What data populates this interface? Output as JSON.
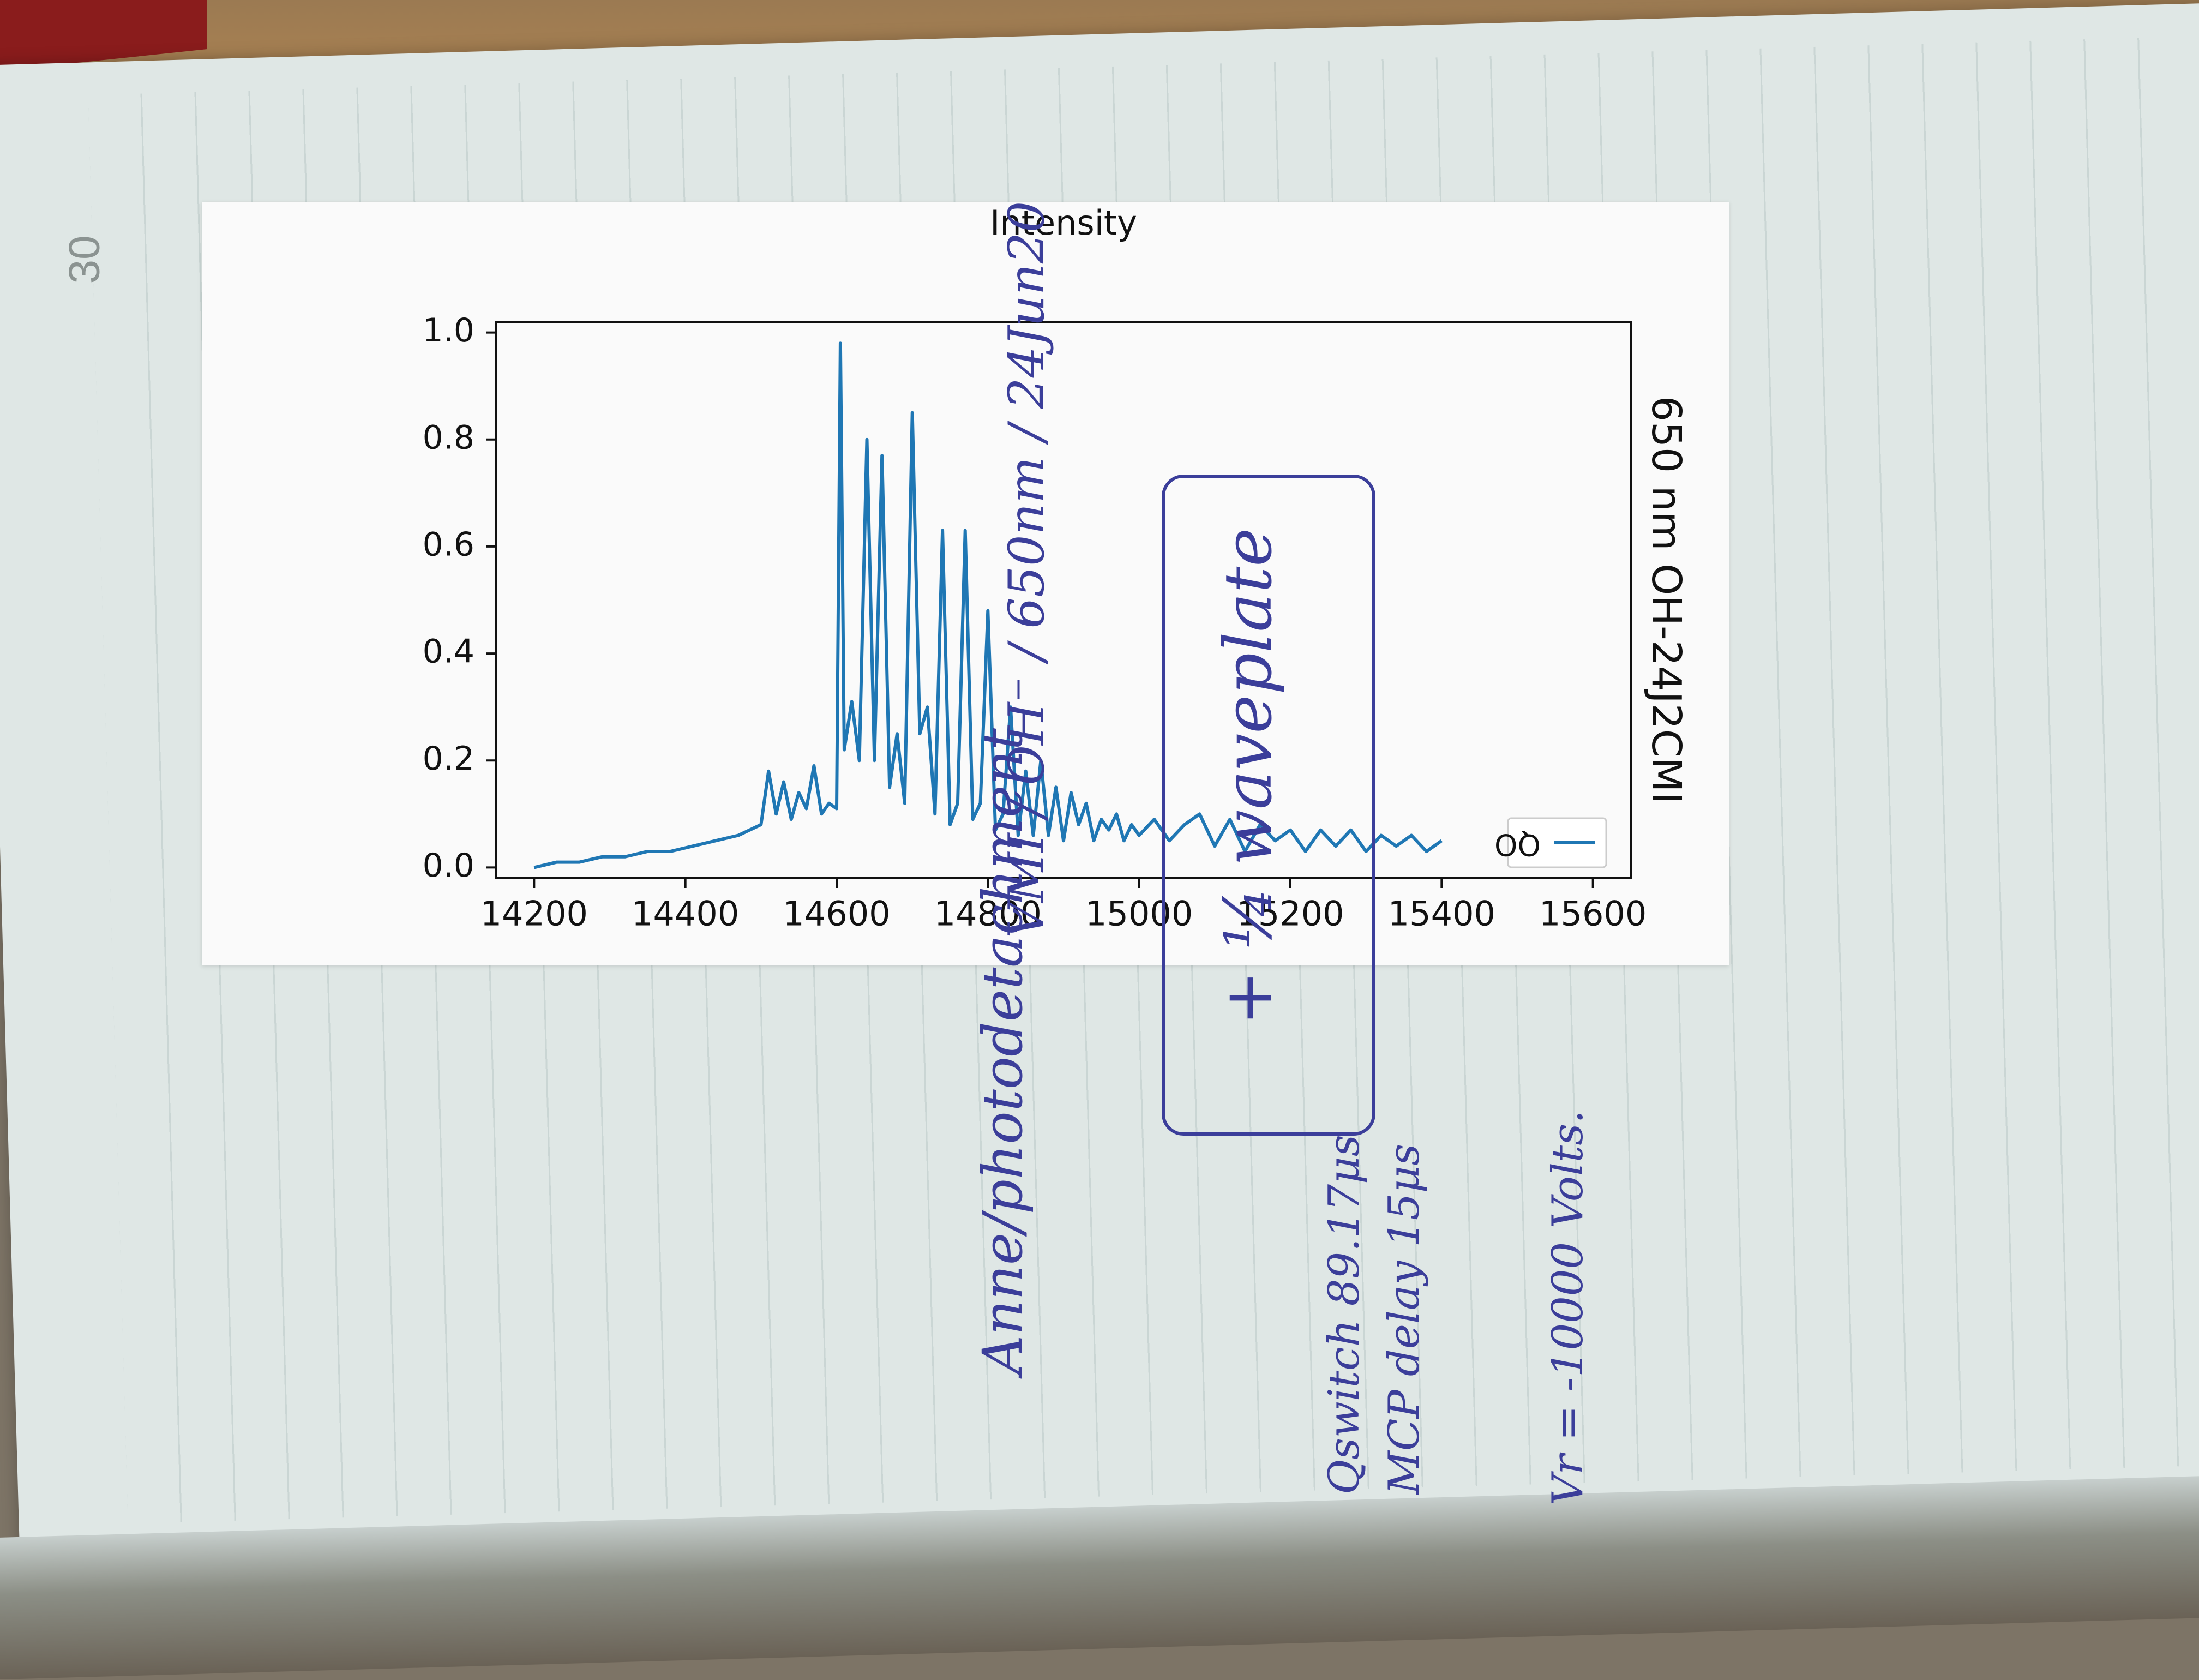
{
  "notebook": {
    "page_number": "30"
  },
  "chart_data": {
    "type": "line",
    "title": "650 nm    OH-24J2CMI",
    "xlabel": "",
    "ylabel": "Intensity",
    "xlim": [
      14150,
      15650
    ],
    "ylim": [
      -0.02,
      1.02
    ],
    "xticks": [
      14200,
      14400,
      14600,
      14800,
      15000,
      15200,
      15400,
      15600
    ],
    "yticks": [
      "0.0",
      "0.2",
      "0.4",
      "0.6",
      "0.8",
      "1.0"
    ],
    "legend": {
      "position": "top-right",
      "entries": [
        "QO"
      ]
    },
    "series": [
      {
        "name": "QO",
        "color": "#1f77b4",
        "x": [
          14200,
          14230,
          14260,
          14290,
          14320,
          14350,
          14380,
          14410,
          14440,
          14470,
          14500,
          14510,
          14520,
          14530,
          14540,
          14550,
          14560,
          14570,
          14580,
          14590,
          14600,
          14605,
          14610,
          14620,
          14630,
          14640,
          14650,
          14660,
          14670,
          14680,
          14690,
          14700,
          14710,
          14720,
          14730,
          14740,
          14750,
          14760,
          14770,
          14780,
          14790,
          14800,
          14810,
          14820,
          14830,
          14840,
          14850,
          14860,
          14870,
          14880,
          14890,
          14900,
          14910,
          14920,
          14930,
          14940,
          14950,
          14960,
          14970,
          14980,
          14990,
          15000,
          15020,
          15040,
          15060,
          15080,
          15100,
          15120,
          15140,
          15160,
          15180,
          15200,
          15220,
          15240,
          15260,
          15280,
          15300,
          15320,
          15340,
          15360,
          15380,
          15400
        ],
        "y": [
          0.0,
          0.01,
          0.01,
          0.02,
          0.02,
          0.03,
          0.03,
          0.04,
          0.05,
          0.06,
          0.08,
          0.18,
          0.1,
          0.16,
          0.09,
          0.14,
          0.11,
          0.19,
          0.1,
          0.12,
          0.11,
          0.98,
          0.22,
          0.31,
          0.2,
          0.8,
          0.2,
          0.77,
          0.15,
          0.25,
          0.12,
          0.85,
          0.25,
          0.3,
          0.1,
          0.63,
          0.08,
          0.12,
          0.63,
          0.09,
          0.12,
          0.48,
          0.07,
          0.1,
          0.3,
          0.06,
          0.18,
          0.06,
          0.2,
          0.06,
          0.15,
          0.05,
          0.14,
          0.08,
          0.12,
          0.05,
          0.09,
          0.07,
          0.1,
          0.05,
          0.08,
          0.06,
          0.09,
          0.05,
          0.08,
          0.1,
          0.04,
          0.09,
          0.03,
          0.08,
          0.05,
          0.07,
          0.03,
          0.07,
          0.04,
          0.07,
          0.03,
          0.06,
          0.04,
          0.06,
          0.03,
          0.05
        ]
      }
    ]
  },
  "notes": {
    "line1_a": "Anne/photodetachment",
    "line1_b": "VMI / OH⁻ / 650nm / 24Jun20",
    "boxed": "+ ¼ waveplate",
    "qswitch_a": "Qswitch 89.17μs",
    "qswitch_b": "MCP delay 15μs",
    "voltage": "Vr = -10000 Volts."
  }
}
